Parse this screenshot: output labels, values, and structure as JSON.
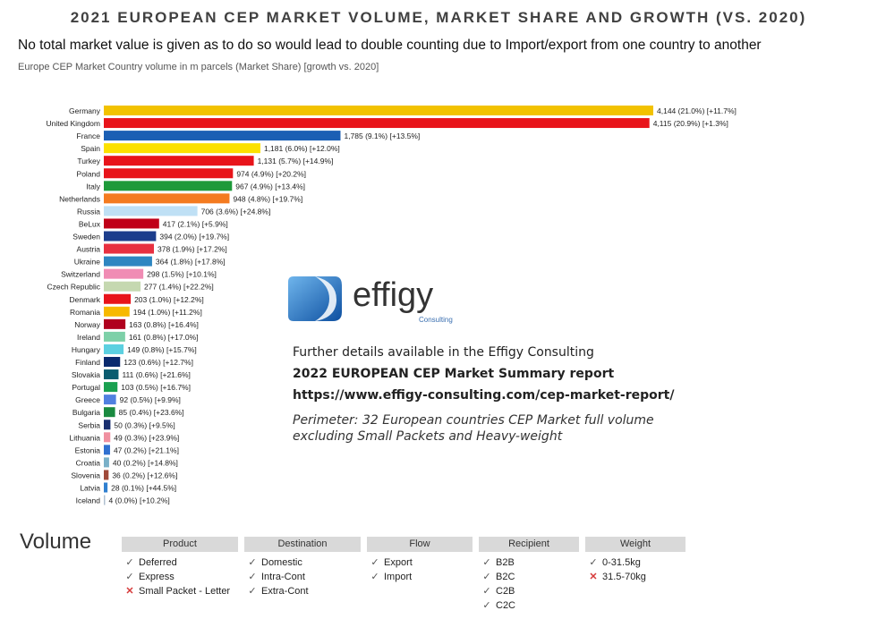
{
  "title": "2021 EUROPEAN CEP MARKET VOLUME, MARKET SHARE AND GROWTH (VS. 2020)",
  "subtitle": "No total market value is given as to do so would lead to double counting due to Import/export from one country to another",
  "caption": "Europe CEP Market Country volume in m parcels (Market Share) [growth vs. 2020]",
  "chart_data": {
    "type": "bar",
    "orientation": "horizontal",
    "categories": [
      "Germany",
      "United Kingdom",
      "France",
      "Spain",
      "Turkey",
      "Poland",
      "Italy",
      "Netherlands",
      "Russia",
      "BeLux",
      "Sweden",
      "Austria",
      "Ukraine",
      "Switzerland",
      "Czech Republic",
      "Denmark",
      "Romania",
      "Norway",
      "Ireland",
      "Hungary",
      "Finland",
      "Slovakia",
      "Portugal",
      "Greece",
      "Bulgaria",
      "Serbia",
      "Lithuania",
      "Estonia",
      "Croatia",
      "Slovenia",
      "Latvia",
      "Iceland"
    ],
    "values": [
      4144,
      4115,
      1785,
      1181,
      1131,
      974,
      967,
      948,
      706,
      417,
      394,
      378,
      364,
      298,
      277,
      203,
      194,
      163,
      161,
      149,
      123,
      111,
      103,
      92,
      85,
      50,
      49,
      47,
      40,
      36,
      28,
      4
    ],
    "data_labels": [
      "4,144 (21.0%) [+11.7%]",
      "4,115 (20.9%) [+1.3%]",
      "1,785 (9.1%) [+13.5%]",
      "1,181 (6.0%) [+12.0%]",
      "1,131 (5.7%) [+14.9%]",
      "974 (4.9%) [+20.2%]",
      "967 (4.9%) [+13.4%]",
      "948 (4.8%) [+19.7%]",
      "706 (3.6%) [+24.8%]",
      "417 (2.1%) [+5.9%]",
      "394 (2.0%) [+19.7%]",
      "378 (1.9%) [+17.2%]",
      "364 (1.8%) [+17.8%]",
      "298 (1.5%) [+10.1%]",
      "277 (1.4%) [+22.2%]",
      "203 (1.0%) [+12.2%]",
      "194 (1.0%) [+11.2%]",
      "163 (0.8%) [+16.4%]",
      "161 (0.8%) [+17.0%]",
      "149 (0.8%) [+15.7%]",
      "123 (0.6%) [+12.7%]",
      "111 (0.6%) [+21.6%]",
      "103 (0.5%) [+16.7%]",
      "92 (0.5%) [+9.9%]",
      "85 (0.4%) [+23.6%]",
      "50 (0.3%) [+9.5%]",
      "49 (0.3%) [+23.9%]",
      "47 (0.2%) [+21.1%]",
      "40 (0.2%) [+14.8%]",
      "36 (0.2%) [+12.6%]",
      "28 (0.1%) [+44.5%]",
      "4 (0.0%) [+10.2%]"
    ],
    "colors": [
      "#f2c200",
      "#e8141a",
      "#1b5fb4",
      "#fce100",
      "#e8141a",
      "#e8141a",
      "#1e9a3a",
      "#f47b20",
      "#bfe0f5",
      "#c00018",
      "#1c3d8c",
      "#e83040",
      "#2e86c1",
      "#f08cb4",
      "#c5d8b0",
      "#e8141a",
      "#f7b900",
      "#b0001e",
      "#7dd0a8",
      "#5cd0e0",
      "#0a2a6e",
      "#0a5c70",
      "#1aa050",
      "#5080e0",
      "#1a8a40",
      "#1a3070",
      "#f090a0",
      "#3070d0",
      "#7ab0c8",
      "#a04a3a",
      "#3080d0",
      "#b0c0d0"
    ],
    "title": "",
    "xlabel": "",
    "ylabel": "",
    "xlim": [
      0,
      4144
    ],
    "grid": false
  },
  "logo": {
    "name": "effigy",
    "sub": "Consulting"
  },
  "details": {
    "line1": "Further details available in the Effigy Consulting",
    "line2": "2022 EUROPEAN CEP Market Summary report",
    "line3": "https://www.effigy-consulting.com/cep-market-report/",
    "line4": "Perimeter: 32 European countries CEP Market full volume",
    "line5": "excluding Small Packets and Heavy-weight"
  },
  "volume_label": "Volume",
  "categories_table": [
    {
      "header": "Product",
      "items": [
        {
          "label": "Deferred",
          "included": true
        },
        {
          "label": "Express",
          "included": true
        },
        {
          "label": "Small Packet - Letter",
          "included": false
        }
      ]
    },
    {
      "header": "Destination",
      "items": [
        {
          "label": "Domestic",
          "included": true
        },
        {
          "label": "Intra-Cont",
          "included": true
        },
        {
          "label": "Extra-Cont",
          "included": true
        }
      ]
    },
    {
      "header": "Flow",
      "items": [
        {
          "label": "Export",
          "included": true
        },
        {
          "label": "Import",
          "included": true
        }
      ]
    },
    {
      "header": "Recipient",
      "items": [
        {
          "label": "B2B",
          "included": true
        },
        {
          "label": "B2C",
          "included": true
        },
        {
          "label": "C2B",
          "included": true
        },
        {
          "label": "C2C",
          "included": true
        }
      ]
    },
    {
      "header": "Weight",
      "items": [
        {
          "label": "0-31.5kg",
          "included": true
        },
        {
          "label": "31.5-70kg",
          "included": false
        }
      ]
    }
  ],
  "marks": {
    "yes": "✓",
    "no": "✕"
  }
}
